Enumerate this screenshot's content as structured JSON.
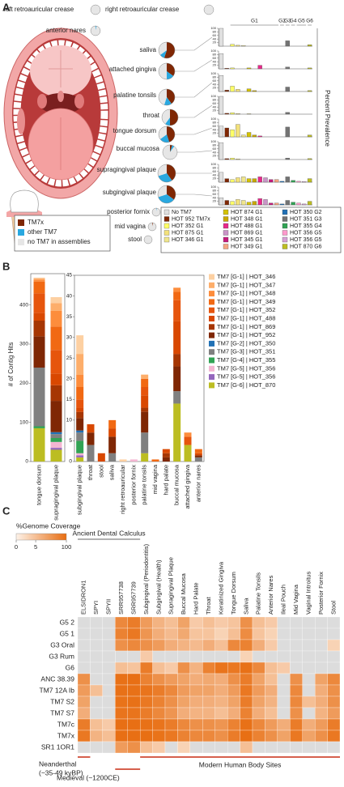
{
  "panel_labels": [
    "A",
    "B",
    "C"
  ],
  "chart_data": [
    {
      "type": "pie",
      "categories": [
        "TM7x",
        "other TM7",
        "no TM7 in assemblies"
      ],
      "colors": [
        "#7f2704",
        "#29a8e0",
        "#e6e6e6"
      ],
      "sites": [
        {
          "name": "left retroauricular crease",
          "values": [
            0,
            0,
            100
          ]
        },
        {
          "name": "right retroauricular crease",
          "values": [
            0,
            0,
            100
          ]
        },
        {
          "name": "anterior nares",
          "values": [
            0,
            3,
            97
          ]
        },
        {
          "name": "saliva",
          "values": [
            55,
            10,
            35
          ]
        },
        {
          "name": "attached gingiva",
          "values": [
            35,
            15,
            50
          ]
        },
        {
          "name": "palatine tonsils",
          "values": [
            40,
            15,
            45
          ]
        },
        {
          "name": "throat",
          "values": [
            50,
            10,
            40
          ]
        },
        {
          "name": "tongue dorsum",
          "values": [
            45,
            20,
            35
          ]
        },
        {
          "name": "buccal mucosa",
          "values": [
            5,
            5,
            90
          ]
        },
        {
          "name": "supragingival plaque",
          "values": [
            40,
            30,
            30
          ]
        },
        {
          "name": "subgingival plaque",
          "values": [
            35,
            35,
            30
          ]
        },
        {
          "name": "posterior fornix",
          "values": [
            0,
            2,
            98
          ]
        },
        {
          "name": "mid vagina",
          "values": [
            3,
            0,
            97
          ]
        },
        {
          "name": "stool",
          "values": [
            0,
            0,
            100
          ]
        }
      ]
    },
    {
      "type": "bar",
      "y_label": "Percent Prevalence",
      "groups": [
        "G1",
        "G2",
        "G3",
        "G4",
        "G5",
        "G6"
      ],
      "categories": [
        "No TM7",
        "HOT 952 TM7x",
        "HOT 352 G1",
        "HOT 875 G1",
        "HOT 346 G1",
        "HOT 874 G1",
        "HOT 348 G1",
        "HOT 488 G1",
        "HOT 869 G1",
        "HOT 345 G1",
        "HOT 349 G1",
        "HOT 350 G2",
        "HOT 351 G3",
        "HOT 355 G4",
        "HOT 356 G5",
        "HOT 356 G5",
        "HOT 870 G6"
      ],
      "colors": [
        "#e0e0e0",
        "#7f2704",
        "#ffff66",
        "#f3e17a",
        "#f0e68c",
        "#d4c200",
        "#c8a800",
        "#e7298a",
        "#c994c7",
        "#c51b7d",
        "#f4a582",
        "#2171b5",
        "#737373",
        "#31a354",
        "#ff99cc",
        "#d6a0d6",
        "#bcbd22"
      ],
      "ylim": [
        0,
        100
      ],
      "yticks": [
        20,
        40,
        60,
        80,
        100
      ],
      "panels": [
        [
          100,
          0,
          10,
          5,
          3,
          0,
          0,
          0,
          0,
          0,
          0,
          0,
          30,
          0,
          0,
          0,
          8
        ],
        [
          85,
          3,
          5,
          0,
          0,
          5,
          0,
          20,
          0,
          0,
          0,
          0,
          10,
          0,
          0,
          0,
          5
        ],
        [
          90,
          8,
          30,
          12,
          0,
          15,
          5,
          0,
          0,
          0,
          0,
          0,
          25,
          0,
          0,
          0,
          5
        ],
        [
          100,
          5,
          8,
          3,
          0,
          2,
          0,
          0,
          0,
          0,
          0,
          0,
          10,
          0,
          0,
          0,
          0
        ],
        [
          60,
          50,
          40,
          70,
          10,
          25,
          10,
          5,
          0,
          0,
          0,
          0,
          55,
          0,
          0,
          0,
          10
        ],
        [
          95,
          5,
          8,
          3,
          0,
          0,
          0,
          0,
          0,
          0,
          0,
          0,
          8,
          0,
          0,
          0,
          5
        ],
        [
          55,
          20,
          15,
          25,
          30,
          20,
          20,
          30,
          25,
          15,
          15,
          5,
          30,
          10,
          5,
          3,
          20
        ],
        [
          40,
          25,
          20,
          30,
          25,
          15,
          20,
          35,
          30,
          10,
          10,
          5,
          25,
          15,
          10,
          5,
          20
        ]
      ]
    },
    {
      "type": "stacked_bar",
      "y_label": "# of Contig Hits",
      "categories": [
        "tongue dorsum",
        "supragingival plaque"
      ],
      "ylim": [
        0,
        480
      ],
      "yticks": [
        0,
        100,
        200,
        300,
        400
      ],
      "categories_right": [
        "subgingival plaque",
        "throat",
        "stool",
        "saliva",
        "right retroauricular",
        "posterior fornix",
        "palatine tonsils",
        "mid vagina",
        "hard palate",
        "buccal mucosa",
        "attached gingiva",
        "anterior nares"
      ],
      "ylim_right": [
        0,
        45
      ],
      "yticks_right": [
        0,
        5,
        10,
        15,
        20,
        25,
        30,
        35,
        40,
        45
      ],
      "series": [
        {
          "name": "TM7 [G-1] | HOT_346",
          "color": "#fdd0a2",
          "values": [
            2,
            15
          ],
          "values_right": [
            4.5,
            0,
            0,
            0,
            0.5,
            0,
            0,
            0,
            0,
            0,
            0,
            0
          ]
        },
        {
          "name": "TM7 [G-1] | HOT_347",
          "color": "#fdae6b",
          "values": [
            3,
            20
          ],
          "values_right": [
            5,
            0,
            0,
            0,
            0,
            0,
            1,
            0,
            0,
            0,
            0,
            0
          ]
        },
        {
          "name": "TM7 [G-1] | HOT_348",
          "color": "#fd8d3c",
          "values": [
            5,
            40
          ],
          "values_right": [
            3,
            0,
            0,
            0,
            0,
            0,
            0,
            0,
            0,
            1,
            1,
            0
          ]
        },
        {
          "name": "TM7 [G-1] | HOT_349",
          "color": "#f16913",
          "values": [
            30,
            60
          ],
          "values_right": [
            3,
            0,
            0,
            2,
            0,
            0,
            2,
            0.5,
            0,
            2,
            0,
            1
          ]
        },
        {
          "name": "TM7 [G-1] | HOT_352",
          "color": "#e6550d",
          "values": [
            50,
            60
          ],
          "values_right": [
            2,
            0,
            0,
            0,
            0,
            0,
            2,
            0,
            0,
            5,
            2,
            0
          ]
        },
        {
          "name": "TM7 [G-1] | HOT_488",
          "color": "#d94801",
          "values": [
            20,
            30
          ],
          "values_right": [
            1,
            2,
            2,
            2,
            0,
            0,
            3,
            0,
            1,
            8,
            0,
            0.5
          ]
        },
        {
          "name": "TM7 [G-1] | HOT_869",
          "color": "#a63603",
          "values": [
            40,
            40
          ],
          "values_right": [
            1.5,
            0,
            0,
            0,
            0,
            0,
            1,
            0,
            1,
            3,
            0,
            0
          ]
        },
        {
          "name": "TM7 [G-1] | HOT_952",
          "color": "#7f2704",
          "values": [
            80,
            80
          ],
          "values_right": [
            3,
            3,
            0,
            4,
            0,
            0,
            5,
            0,
            1,
            6,
            0,
            0.5
          ]
        },
        {
          "name": "TM7 [G-2] | HOT_350",
          "color": "#2171b5",
          "values": [
            0,
            5
          ],
          "values_right": [
            0.5,
            0,
            0,
            0,
            0,
            0,
            0,
            0,
            0,
            0,
            0,
            0
          ]
        },
        {
          "name": "TM7 [G-3] | HOT_351",
          "color": "#808080",
          "values": [
            150,
            10
          ],
          "values_right": [
            2,
            4,
            0,
            2,
            0,
            0,
            5,
            0,
            0,
            3,
            0,
            1
          ]
        },
        {
          "name": "TM7 [G-4] | HOT_355",
          "color": "#31a354",
          "values": [
            5,
            10
          ],
          "values_right": [
            3,
            0,
            0,
            0,
            0,
            0,
            0,
            0,
            0,
            0,
            0,
            0
          ]
        },
        {
          "name": "TM7 [G-5] | HOT_356",
          "color": "#f4b6d2",
          "values": [
            0,
            15
          ],
          "values_right": [
            0.5,
            0,
            0,
            0,
            0,
            0.5,
            0,
            0,
            0,
            0,
            0,
            0
          ]
        },
        {
          "name": "TM7 [G-5] | HOT_356",
          "color": "#9467bd",
          "values": [
            0,
            5
          ],
          "values_right": [
            0.5,
            0,
            0,
            0,
            0,
            0,
            0,
            0,
            0,
            0,
            0,
            0
          ]
        },
        {
          "name": "TM7 [G-6] | HOT_870",
          "color": "#bcbd22",
          "values": [
            85,
            30
          ],
          "values_right": [
            1,
            0,
            0,
            0,
            0,
            0,
            2,
            0,
            0,
            14,
            4,
            0
          ]
        }
      ]
    },
    {
      "type": "heatmap",
      "title": "%Genome Coverage",
      "zlim": [
        0,
        100
      ],
      "ticks": [
        0,
        5,
        100
      ],
      "group_label": "Ancient Dental Calculus",
      "columns": [
        "ELSIDRON1",
        "SPYI",
        "SPYII",
        "SRR957738",
        "SRR957739",
        "Subgingival (Periodontitis)",
        "Subgingival (Health)",
        "Supragingival Plaque",
        "Buccal Mucosa",
        "Hard Palate",
        "Throat",
        "Keratinized Gingiva",
        "Tongue Dorsum",
        "Saliva",
        "Palatine Tonsils",
        "Anterior Nares",
        "Ileal Pouch",
        "Mid Vagina",
        "Vaginal Introitus",
        "Posterior Fornix",
        "Stool"
      ],
      "rows": [
        "G5 2",
        "G5 1",
        "G3 Oral",
        "G3 Rum",
        "G6",
        "ANC 38.39",
        "TM7 12A Ib",
        "TM7 S2",
        "TM7 S7",
        "TM7c",
        "TM7x",
        "SR1 1OR1"
      ],
      "values": [
        [
          null,
          null,
          null,
          40,
          60,
          20,
          8,
          5,
          15,
          3,
          5,
          3,
          4,
          30,
          5,
          3,
          null,
          null,
          null,
          null,
          null
        ],
        [
          null,
          null,
          null,
          50,
          70,
          25,
          10,
          6,
          12,
          4,
          4,
          2,
          5,
          35,
          4,
          2,
          null,
          null,
          null,
          null,
          null
        ],
        [
          null,
          null,
          null,
          30,
          40,
          30,
          20,
          10,
          8,
          6,
          10,
          5,
          40,
          50,
          10,
          3,
          null,
          null,
          null,
          null,
          2
        ],
        [
          null,
          null,
          null,
          null,
          null,
          3,
          null,
          null,
          null,
          null,
          null,
          null,
          null,
          2,
          null,
          null,
          null,
          null,
          null,
          null,
          null
        ],
        [
          null,
          null,
          null,
          5,
          4,
          60,
          5,
          3,
          30,
          8,
          50,
          80,
          70,
          90,
          40,
          5,
          3,
          null,
          null,
          null,
          null
        ],
        [
          30,
          null,
          null,
          90,
          95,
          50,
          30,
          20,
          15,
          10,
          12,
          10,
          30,
          60,
          15,
          5,
          null,
          30,
          null,
          15,
          40
        ],
        [
          20,
          5,
          null,
          90,
          90,
          80,
          60,
          40,
          20,
          15,
          15,
          10,
          20,
          70,
          20,
          10,
          null,
          40,
          null,
          10,
          30
        ],
        [
          15,
          null,
          null,
          85,
          90,
          70,
          50,
          30,
          15,
          10,
          10,
          8,
          15,
          60,
          15,
          8,
          null,
          40,
          5,
          10,
          30
        ],
        [
          10,
          null,
          null,
          80,
          80,
          60,
          40,
          25,
          10,
          8,
          8,
          5,
          10,
          50,
          10,
          5,
          null,
          30,
          null,
          8,
          20
        ],
        [
          60,
          5,
          3,
          95,
          95,
          90,
          80,
          60,
          40,
          30,
          30,
          25,
          50,
          90,
          40,
          20,
          10,
          60,
          10,
          20,
          60
        ],
        [
          70,
          8,
          5,
          95,
          95,
          95,
          85,
          70,
          50,
          40,
          40,
          30,
          60,
          95,
          50,
          30,
          15,
          70,
          15,
          30,
          70
        ],
        [
          null,
          null,
          null,
          20,
          30,
          5,
          3,
          null,
          2,
          null,
          null,
          null,
          null,
          5,
          null,
          null,
          null,
          null,
          null,
          null,
          null
        ]
      ],
      "neanderthal": [
        "Neanderthal",
        "(~35-49 kyBP)"
      ],
      "medieval": "Medieval (~1200CE)",
      "modern": "Modern Human Body Sites"
    }
  ]
}
